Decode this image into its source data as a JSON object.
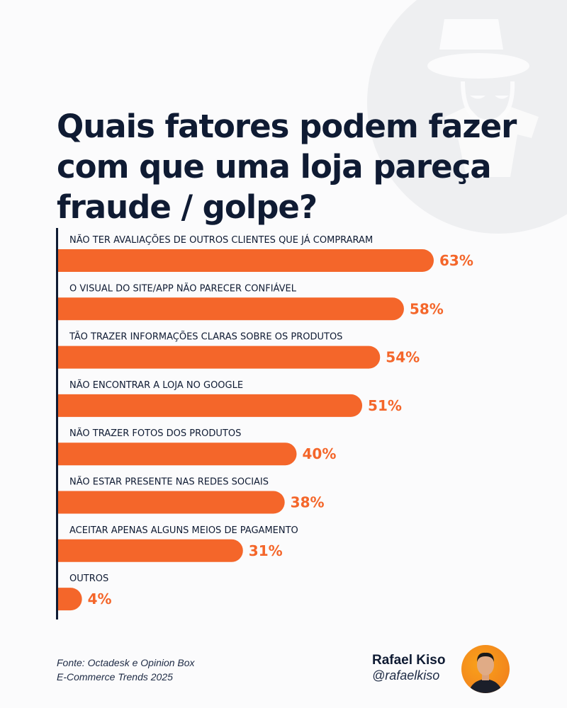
{
  "title": "Quais fatores podem fazer com que uma loja pareça fraude / golpe?",
  "colors": {
    "bar": "#f4662a",
    "text": "#0f1b33",
    "value": "#f4662a",
    "background": "#fbfbfc",
    "circle": "#eeeff1"
  },
  "icon": "spy-incognito-icon",
  "chart_data": {
    "type": "bar",
    "orientation": "horizontal",
    "categories": [
      "NÃO TER AVALIAÇÕES DE OUTROS CLIENTES QUE JÁ COMPRARAM",
      "O VISUAL DO SITE/APP NÃO PARECER CONFIÁVEL",
      "TÃO TRAZER INFORMAÇÕES CLARAS SOBRE OS PRODUTOS",
      "NÃO ENCONTRAR A LOJA NO GOOGLE",
      "NÃO TRAZER FOTOS DOS PRODUTOS",
      "NÃO ESTAR PRESENTE NAS REDES SOCIAIS",
      "ACEITAR APENAS ALGUNS MEIOS DE PAGAMENTO",
      "OUTROS"
    ],
    "values": [
      63,
      58,
      54,
      51,
      40,
      38,
      31,
      4
    ],
    "labels": [
      "63%",
      "58%",
      "54%",
      "51%",
      "40%",
      "38%",
      "31%",
      "4%"
    ],
    "unit": "%",
    "grid": false
  },
  "footer": {
    "source_line1": "Fonte: Octadesk e Opinion Box",
    "source_line2": "E-Commerce Trends 2025",
    "author_name": "Rafael Kiso",
    "author_handle": "@rafaelkiso"
  }
}
